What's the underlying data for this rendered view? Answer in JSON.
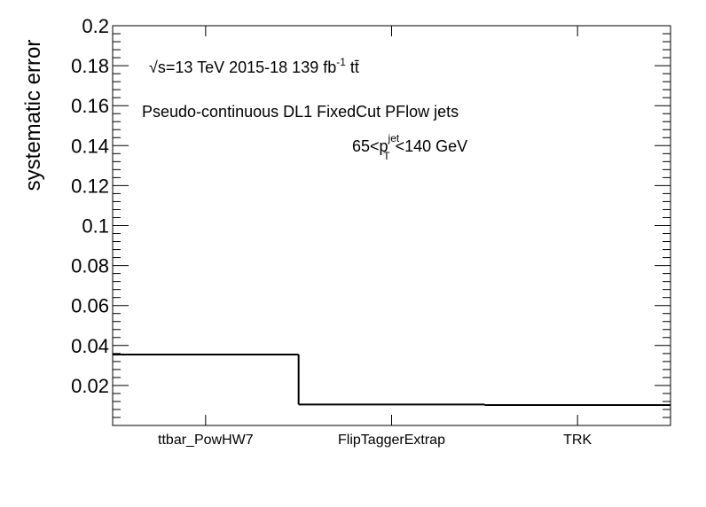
{
  "chart_data": {
    "type": "bar",
    "style": "step-histogram",
    "categories": [
      "ttbar_PowHW7",
      "FlipTaggerExtrap",
      "TRK"
    ],
    "values": [
      0.0355,
      0.0105,
      0.0102
    ],
    "ylabel": "systematic error",
    "xlabel": "",
    "ylim": [
      0,
      0.2
    ],
    "y_tick_labels": [
      "0.02",
      "0.04",
      "0.06",
      "0.08",
      "0.1",
      "0.12",
      "0.14",
      "0.16",
      "0.18",
      "0.2"
    ],
    "grid": false,
    "annotations": {
      "line1": {
        "sqrt": "√s",
        "energy": "=13 TeV  2015-18  139 fb",
        "lumi_exp": "-1",
        "process": " tt̄"
      },
      "line2": "Pseudo-continuous DL1 FixedCut PFlow jets",
      "line3": {
        "prefix": "65<p",
        "sup": "jet",
        "sub": "T",
        "suffix": "<140 GeV"
      }
    }
  }
}
